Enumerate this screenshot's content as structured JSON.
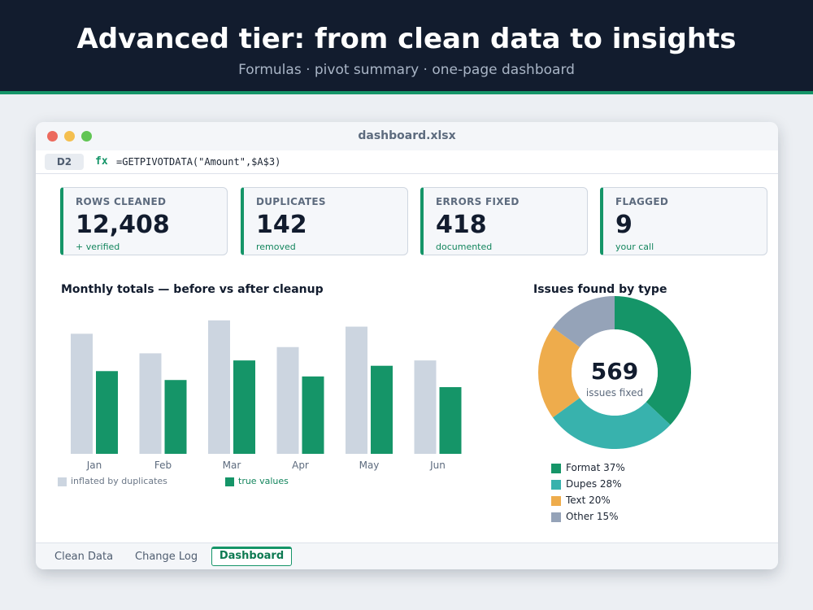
{
  "header": {
    "title": "Advanced tier: from clean data to insights",
    "subtitle": "Formulas · pivot summary · one-page dashboard"
  },
  "window": {
    "title": "dashboard.xlsx"
  },
  "formula_bar": {
    "cell_ref": "D2",
    "fx_label": "fx",
    "formula": "=GETPIVOTDATA(\"Amount\",$A$3)"
  },
  "kpis": [
    {
      "label": "ROWS CLEANED",
      "value": "12,408",
      "note": "+ verified"
    },
    {
      "label": "DUPLICATES",
      "value": "142",
      "note": "removed"
    },
    {
      "label": "ERRORS FIXED",
      "value": "418",
      "note": "documented"
    },
    {
      "label": "FLAGGED",
      "value": "9",
      "note": "your call"
    }
  ],
  "colors": {
    "accent": "#159568",
    "inflated": "#ccd5e0",
    "true_values": "#159568",
    "format": "#159568",
    "dupes": "#38b2ad",
    "text": "#eeac4c",
    "other": "#95a3b8"
  },
  "chart_data": [
    {
      "type": "bar",
      "title": "Monthly totals — before vs after cleanup",
      "categories": [
        "Jan",
        "Feb",
        "Mar",
        "Apr",
        "May",
        "Jun"
      ],
      "series": [
        {
          "name": "inflated by duplicates",
          "values": [
            135,
            113,
            150,
            120,
            143,
            105
          ]
        },
        {
          "name": "true values",
          "values": [
            93,
            83,
            105,
            87,
            99,
            75
          ]
        }
      ],
      "ylim": [
        0,
        160
      ],
      "grid": false,
      "legend": "bottom-left"
    },
    {
      "type": "pie",
      "title": "Issues found by type",
      "center_value": "569",
      "center_label": "issues fixed",
      "labels": [
        "Format 37%",
        "Dupes 28%",
        "Text 20%",
        "Other 15%"
      ],
      "values": [
        37,
        28,
        20,
        15
      ],
      "legend": "bottom"
    }
  ],
  "sheet_tabs": [
    {
      "label": "Clean Data"
    },
    {
      "label": "Change Log"
    },
    {
      "label": "Dashboard"
    }
  ]
}
